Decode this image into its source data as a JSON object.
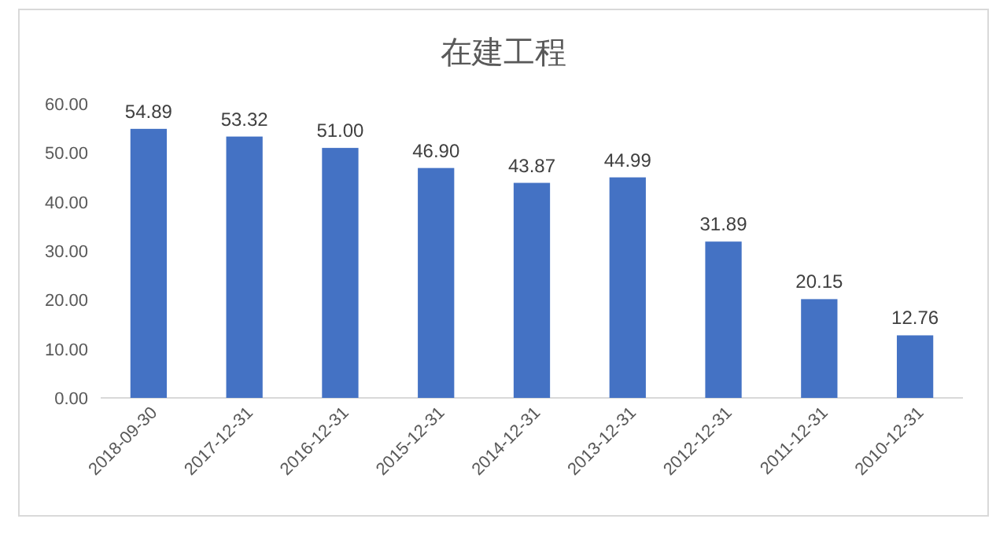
{
  "chart_data": {
    "type": "bar",
    "title": "在建工程",
    "categories": [
      "2018-09-30",
      "2017-12-31",
      "2016-12-31",
      "2015-12-31",
      "2014-12-31",
      "2013-12-31",
      "2012-12-31",
      "2011-12-31",
      "2010-12-31"
    ],
    "values": [
      54.89,
      53.32,
      51.0,
      46.9,
      43.87,
      44.99,
      31.89,
      20.15,
      12.76
    ],
    "value_labels": [
      "54.89",
      "53.32",
      "51.00",
      "46.90",
      "43.87",
      "44.99",
      "31.89",
      "20.15",
      "12.76"
    ],
    "color": "#4472c4",
    "ylim": [
      0,
      60
    ],
    "yticks": [
      {
        "value": 0,
        "label": "0.00"
      },
      {
        "value": 10,
        "label": "10.00"
      },
      {
        "value": 20,
        "label": "20.00"
      },
      {
        "value": 30,
        "label": "30.00"
      },
      {
        "value": 40,
        "label": "40.00"
      },
      {
        "value": 50,
        "label": "50.00"
      },
      {
        "value": 60,
        "label": "60.00"
      }
    ],
    "grid": false
  }
}
